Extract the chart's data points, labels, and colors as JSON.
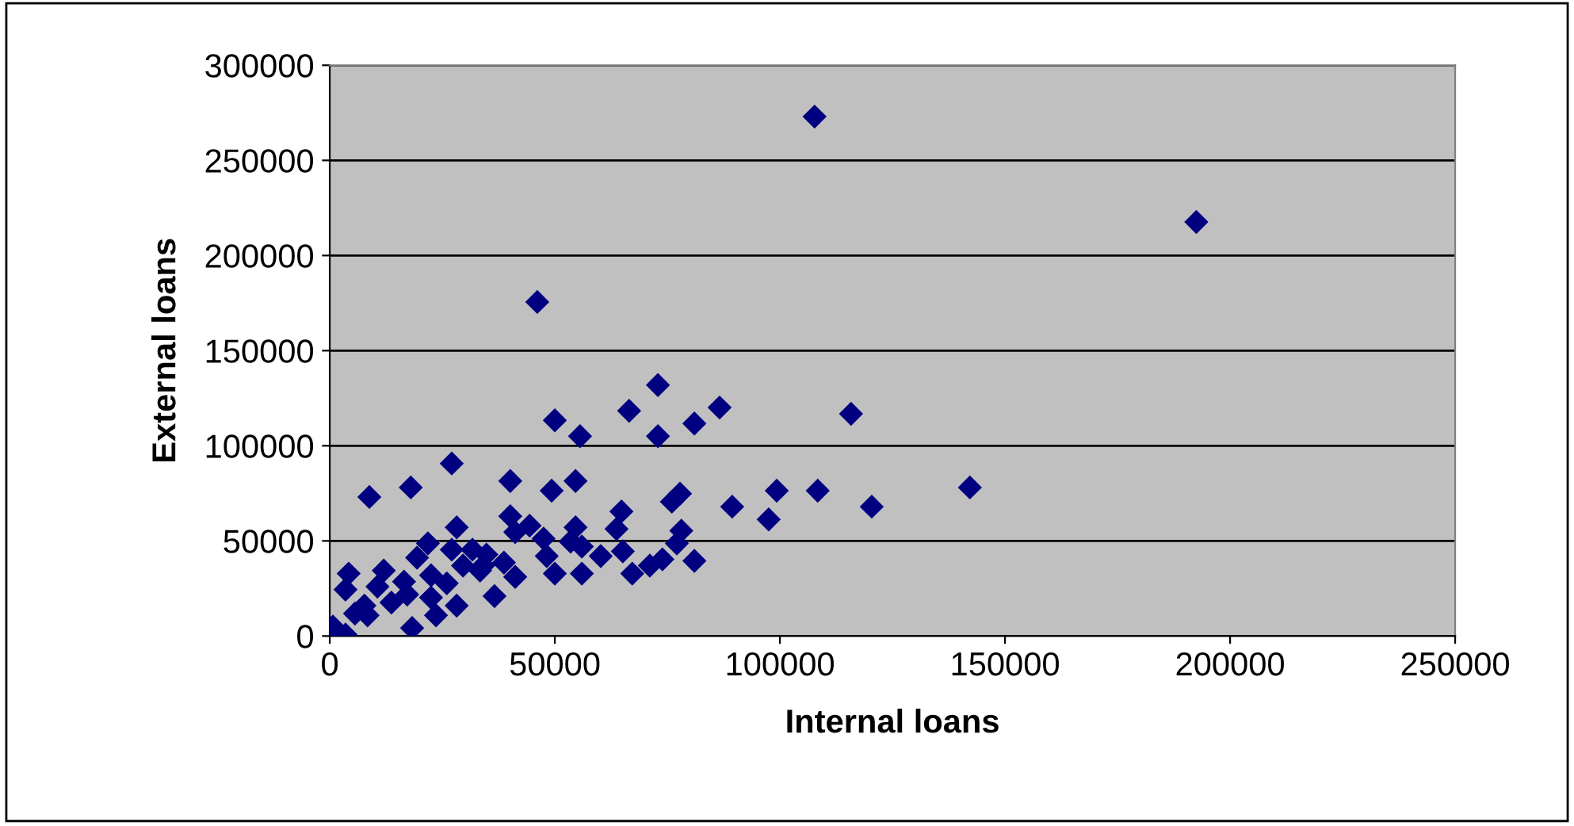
{
  "chart_data": {
    "type": "scatter",
    "xlabel": "Internal loans",
    "ylabel": "External loans",
    "xlim": [
      0,
      250000
    ],
    "xticks": [
      0,
      50000,
      100000,
      150000,
      200000,
      250000
    ],
    "ylim": [
      0,
      300000
    ],
    "yticks": [
      0,
      50000,
      100000,
      150000,
      200000,
      250000,
      300000
    ],
    "grid": "y",
    "legend": false,
    "marker": "diamond",
    "series": [
      {
        "color": "#000080",
        "x": [
          107700,
          192500,
          46100,
          115800,
          99300,
          108400,
          120400,
          142200,
          97500,
          72900,
          66500,
          50000,
          55600,
          72900,
          81000,
          86600,
          40100,
          49300,
          54600,
          77800,
          76000,
          89400,
          40100,
          41200,
          44400,
          47500,
          54600,
          53500,
          64800,
          63700,
          78100,
          77100,
          48200,
          56000,
          60200,
          65100,
          81000,
          73900,
          71100,
          67200,
          50000,
          56000,
          41200,
          36600,
          34800,
          33400,
          38700,
          27100,
          18000,
          8800,
          28200,
          21800,
          19400,
          27100,
          31700,
          29600,
          34100,
          12000,
          4200,
          3500,
          10600,
          16500,
          22500,
          26000,
          13700,
          7700,
          8400,
          22500,
          23600,
          28200,
          18300,
          700,
          3500,
          17200,
          5600
        ],
        "values": [
          273000,
          217600,
          175600,
          116800,
          76400,
          76400,
          68000,
          78100,
          61300,
          131900,
          118400,
          113400,
          105000,
          105000,
          111700,
          120100,
          81500,
          76400,
          81500,
          74800,
          70600,
          68000,
          63000,
          54600,
          58000,
          51200,
          57100,
          49600,
          65500,
          56300,
          55400,
          48700,
          42000,
          47000,
          42000,
          44500,
          39500,
          40300,
          37000,
          32800,
          32800,
          32800,
          31100,
          21000,
          42800,
          34400,
          38600,
          90700,
          78100,
          73100,
          57100,
          48700,
          41200,
          45400,
          45400,
          37000,
          37000,
          34400,
          32800,
          24400,
          26000,
          28600,
          31900,
          27700,
          17600,
          16000,
          10900,
          20200,
          10900,
          16000,
          4200,
          5000,
          800,
          21800,
          11800
        ]
      }
    ]
  }
}
